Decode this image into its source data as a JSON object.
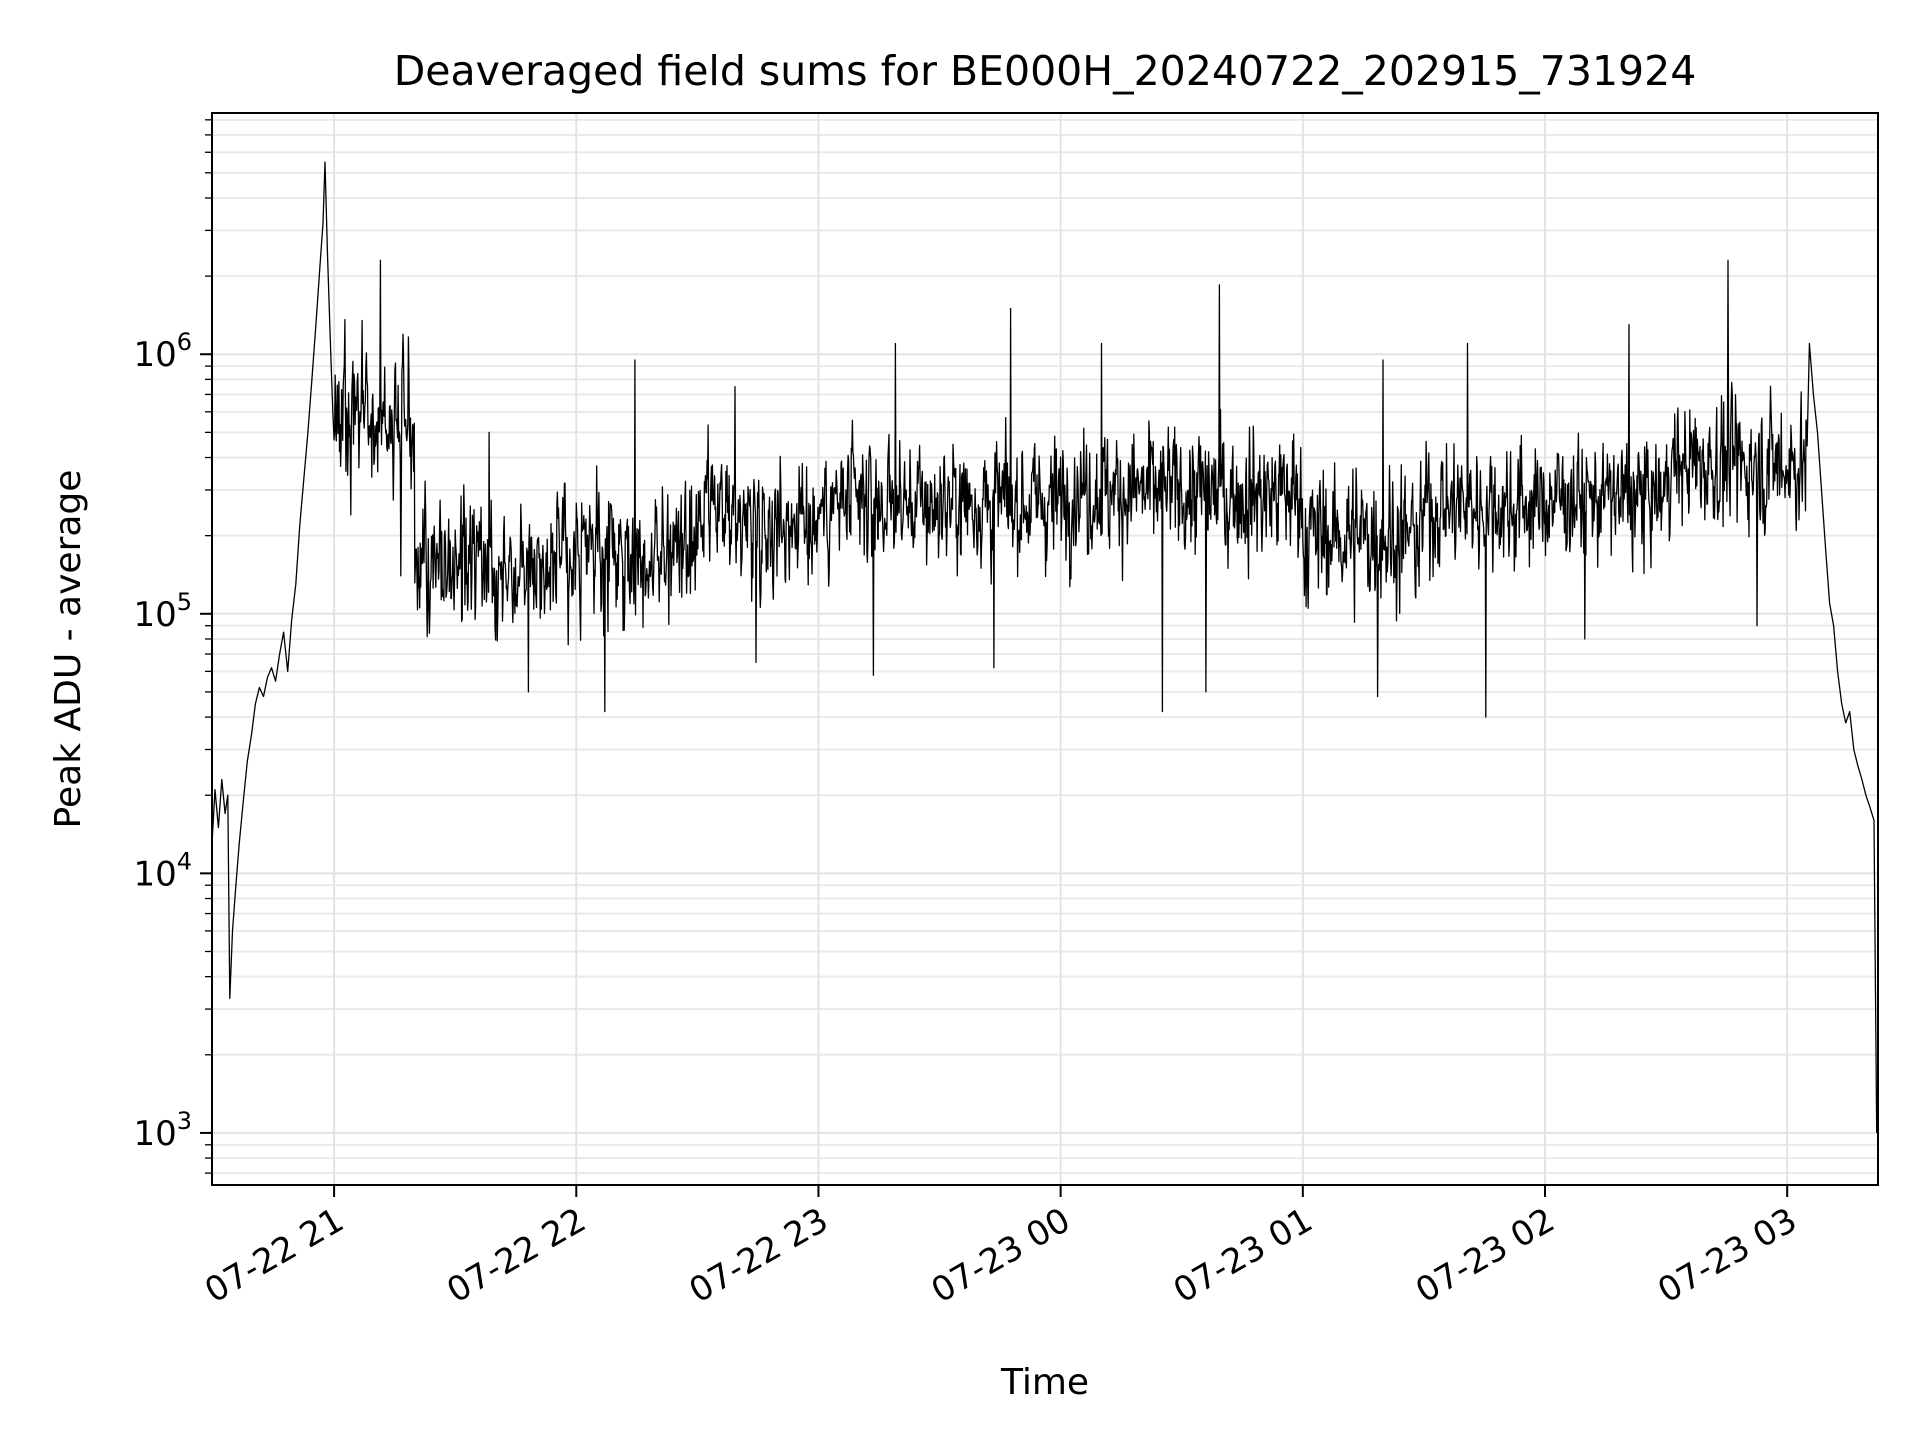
{
  "chart_data": {
    "type": "line",
    "title": "Deaveraged field sums for BE000H_20240722_202915_731924",
    "xlabel": "Time",
    "ylabel": "Peak ADU - average",
    "yscale": "log",
    "xlim": [
      "2024-07-22 20:29:45",
      "2024-07-23 03:22:30"
    ],
    "ylim": [
      630,
      8500000
    ],
    "grid": true,
    "legend": "none",
    "line_color": "#000000",
    "x_ticks": [
      {
        "value": "2024-07-22 21:00",
        "label": "07-22 21"
      },
      {
        "value": "2024-07-22 22:00",
        "label": "07-22 22"
      },
      {
        "value": "2024-07-22 23:00",
        "label": "07-22 23"
      },
      {
        "value": "2024-07-23 00:00",
        "label": "07-23 00"
      },
      {
        "value": "2024-07-23 01:00",
        "label": "07-23 01"
      },
      {
        "value": "2024-07-23 02:00",
        "label": "07-23 02"
      },
      {
        "value": "2024-07-23 03:00",
        "label": "07-23 03"
      }
    ],
    "y_ticks": [
      {
        "value": 1000,
        "base": "10",
        "exp": "3"
      },
      {
        "value": 10000,
        "base": "10",
        "exp": "4"
      },
      {
        "value": 100000,
        "base": "10",
        "exp": "5"
      },
      {
        "value": 1000000,
        "base": "10",
        "exp": "6"
      }
    ],
    "series": [
      {
        "points": [
          [
            "2024-07-22 20:29:45",
            13000
          ],
          [
            "2024-07-22 20:30:30",
            21000
          ],
          [
            "2024-07-22 20:31:20",
            15000
          ],
          [
            "2024-07-22 20:32:10",
            23000
          ],
          [
            "2024-07-22 20:33:00",
            17000
          ],
          [
            "2024-07-22 20:33:40",
            20000
          ],
          [
            "2024-07-22 20:34:10",
            3300
          ],
          [
            "2024-07-22 20:34:50",
            6000
          ],
          [
            "2024-07-22 20:35:40",
            9000
          ],
          [
            "2024-07-22 20:36:30",
            13000
          ],
          [
            "2024-07-22 20:37:30",
            19000
          ],
          [
            "2024-07-22 20:38:30",
            27000
          ],
          [
            "2024-07-22 20:39:30",
            34000
          ],
          [
            "2024-07-22 20:40:30",
            45000
          ],
          [
            "2024-07-22 20:41:30",
            52000
          ],
          [
            "2024-07-22 20:42:30",
            48000
          ],
          [
            "2024-07-22 20:43:30",
            57000
          ],
          [
            "2024-07-22 20:44:30",
            62000
          ],
          [
            "2024-07-22 20:45:30",
            55000
          ],
          [
            "2024-07-22 20:46:30",
            70000
          ],
          [
            "2024-07-22 20:47:30",
            85000
          ],
          [
            "2024-07-22 20:48:30",
            60000
          ],
          [
            "2024-07-22 20:49:30",
            95000
          ],
          [
            "2024-07-22 20:50:30",
            130000
          ],
          [
            "2024-07-22 20:51:30",
            220000
          ],
          [
            "2024-07-22 20:52:30",
            330000
          ],
          [
            "2024-07-22 20:53:30",
            500000
          ],
          [
            "2024-07-22 20:54:30",
            800000
          ],
          [
            "2024-07-22 20:55:30",
            1300000
          ],
          [
            "2024-07-22 20:56:30",
            2200000
          ],
          [
            "2024-07-22 20:57:15",
            3200000
          ],
          [
            "2024-07-22 20:57:45",
            5500000
          ],
          [
            "2024-07-22 20:58:20",
            2500000
          ],
          [
            "2024-07-22 20:59:00",
            1200000
          ],
          [
            "2024-07-22 20:59:40",
            600000
          ]
        ],
        "noise_segments": [
          {
            "start": "2024-07-22 21:00",
            "end": "2024-07-22 21:20",
            "center": 550000,
            "spread": 0.48,
            "spike": 2300000,
            "dip": 140000
          },
          {
            "start": "2024-07-22 21:20",
            "end": "2024-07-22 22:00",
            "center": 160000,
            "spread": 0.42,
            "spike": 500000,
            "dip": 50000
          },
          {
            "start": "2024-07-22 22:00",
            "end": "2024-07-22 22:30",
            "center": 170000,
            "spread": 0.44,
            "spike": 950000,
            "dip": 42000
          },
          {
            "start": "2024-07-22 22:30",
            "end": "2024-07-22 23:00",
            "center": 230000,
            "spread": 0.42,
            "spike": 750000,
            "dip": 65000
          },
          {
            "start": "2024-07-22 23:00",
            "end": "2024-07-22 23:30",
            "center": 260000,
            "spread": 0.42,
            "spike": 1100000,
            "dip": 58000
          },
          {
            "start": "2024-07-22 23:30",
            "end": "2024-07-23 00:00",
            "center": 270000,
            "spread": 0.44,
            "spike": 1500000,
            "dip": 62000
          },
          {
            "start": "2024-07-23 00:00",
            "end": "2024-07-23 00:30",
            "center": 300000,
            "spread": 0.44,
            "spike": 1100000,
            "dip": 42000
          },
          {
            "start": "2024-07-23 00:30",
            "end": "2024-07-23 01:00",
            "center": 290000,
            "spread": 0.46,
            "spike": 1850000,
            "dip": 50000
          },
          {
            "start": "2024-07-23 01:00",
            "end": "2024-07-23 01:30",
            "center": 200000,
            "spread": 0.46,
            "spike": 950000,
            "dip": 48000
          },
          {
            "start": "2024-07-23 01:30",
            "end": "2024-07-23 02:00",
            "center": 260000,
            "spread": 0.44,
            "spike": 1100000,
            "dip": 40000
          },
          {
            "start": "2024-07-23 02:00",
            "end": "2024-07-23 02:30",
            "center": 280000,
            "spread": 0.42,
            "spike": 1300000,
            "dip": 80000
          },
          {
            "start": "2024-07-23 02:30",
            "end": "2024-07-23 03:05",
            "center": 380000,
            "spread": 0.44,
            "spike": 2300000,
            "dip": 90000
          }
        ],
        "tail": [
          [
            "2024-07-23 03:05:30",
            1100000
          ],
          [
            "2024-07-23 03:06:30",
            700000
          ],
          [
            "2024-07-23 03:07:30",
            500000
          ],
          [
            "2024-07-23 03:08:30",
            300000
          ],
          [
            "2024-07-23 03:09:30",
            180000
          ],
          [
            "2024-07-23 03:10:30",
            110000
          ],
          [
            "2024-07-23 03:11:30",
            90000
          ],
          [
            "2024-07-23 03:12:30",
            60000
          ],
          [
            "2024-07-23 03:13:30",
            45000
          ],
          [
            "2024-07-23 03:14:30",
            38000
          ],
          [
            "2024-07-23 03:15:30",
            42000
          ],
          [
            "2024-07-23 03:16:30",
            30000
          ],
          [
            "2024-07-23 03:17:30",
            26000
          ],
          [
            "2024-07-23 03:18:30",
            23000
          ],
          [
            "2024-07-23 03:19:30",
            20000
          ],
          [
            "2024-07-23 03:20:30",
            18000
          ],
          [
            "2024-07-23 03:21:30",
            16000
          ],
          [
            "2024-07-23 03:22:10",
            1000
          ]
        ]
      }
    ]
  }
}
